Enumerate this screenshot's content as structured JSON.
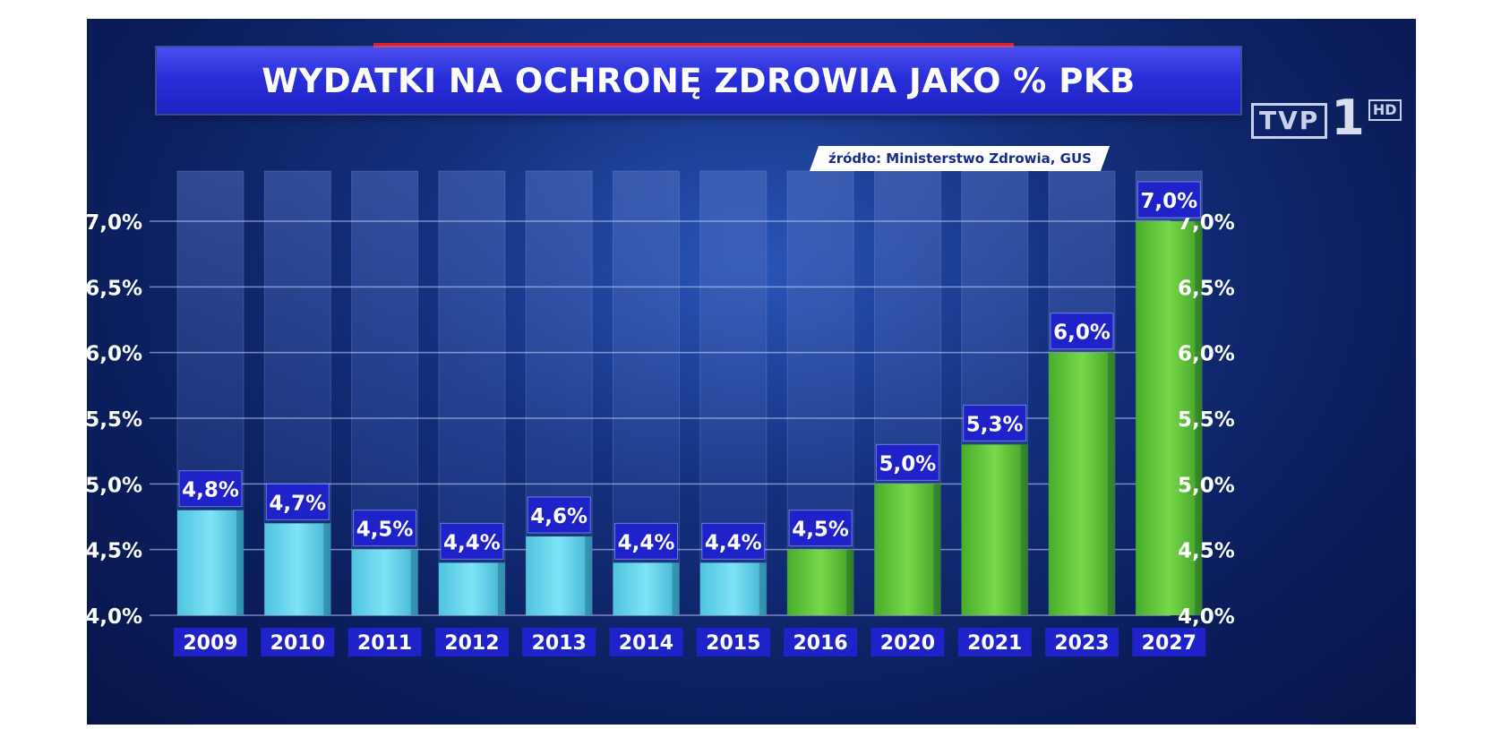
{
  "header": {
    "title": "WYDATKI NA OCHRONĘ ZDROWIA JAKO % PKB",
    "source": "źródło: Ministerstwo Zdrowia, GUS"
  },
  "logo": {
    "tvp": "TVP",
    "one": "1",
    "hd": "HD"
  },
  "chart_data": {
    "type": "bar",
    "title": "WYDATKI NA OCHRONĘ ZDROWIA JAKO % PKB",
    "categories": [
      "2009",
      "2010",
      "2011",
      "2012",
      "2013",
      "2014",
      "2015",
      "2016",
      "2020",
      "2021",
      "2023",
      "2027"
    ],
    "values": [
      4.8,
      4.7,
      4.5,
      4.4,
      4.6,
      4.4,
      4.4,
      4.5,
      5.0,
      5.3,
      6.0,
      7.0
    ],
    "value_labels": [
      "4,8%",
      "4,7%",
      "4,5%",
      "4,4%",
      "4,6%",
      "4,4%",
      "4,4%",
      "4,5%",
      "5,0%",
      "5,3%",
      "6,0%",
      "7,0%"
    ],
    "yticks": [
      4.0,
      4.5,
      5.0,
      5.5,
      6.0,
      6.5,
      7.0
    ],
    "ytick_labels": [
      "4,0%",
      "4,5%",
      "5,0%",
      "5,5%",
      "6,0%",
      "6,5%",
      "7,0%"
    ],
    "ylim": [
      4.0,
      7.0
    ],
    "grid": true,
    "colors": {
      "historic": "#5ed3ec",
      "forecast": "#5ec63a",
      "label_bg": "#1f22c8"
    },
    "bar_color_groups": [
      "historic",
      "historic",
      "historic",
      "historic",
      "historic",
      "historic",
      "historic",
      "forecast",
      "forecast",
      "forecast",
      "forecast",
      "forecast"
    ]
  }
}
